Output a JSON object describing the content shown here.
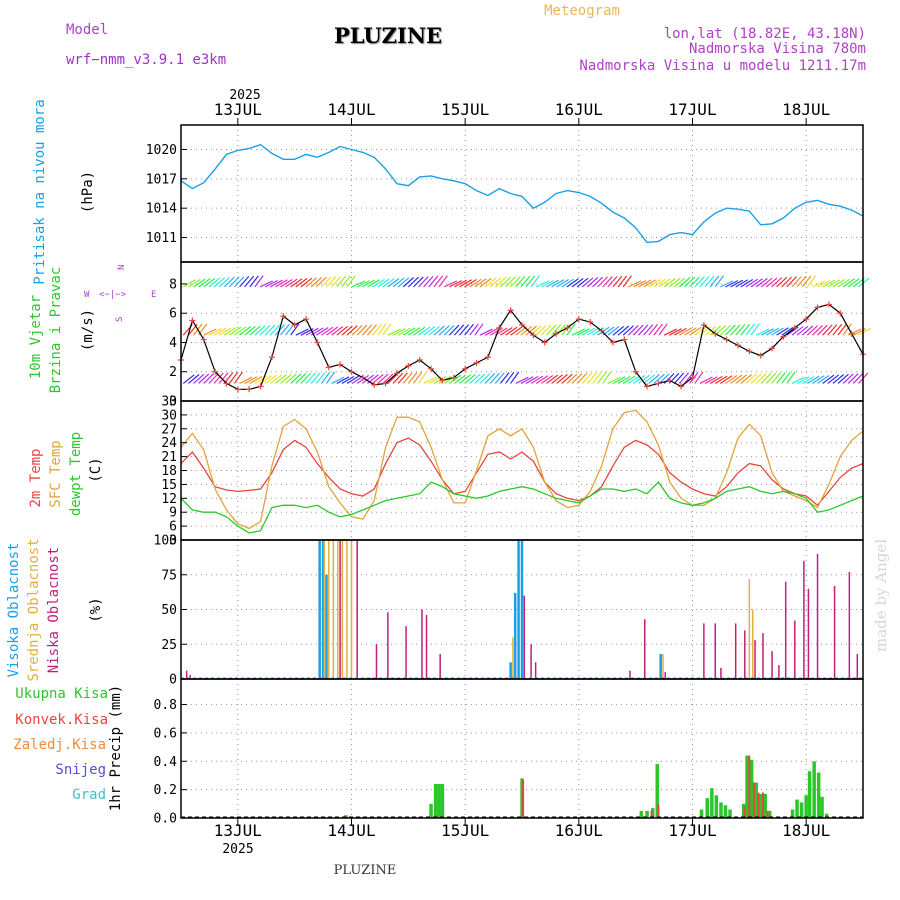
{
  "header": {
    "model_label": "Model",
    "model_name": "wrf−nmm_v3.9.1  e3km",
    "title": "PLUZINE",
    "meteogram": "Meteogram",
    "lonlat": "lon,lat (18.82E, 43.18N)",
    "altitude": "Nadmorska Visina 780m",
    "model_altitude": "Nadmorska Visina u modelu 1211.17m",
    "footer": "PLUZINE",
    "watermark": "made by Angel"
  },
  "colors": {
    "pressure": "#1aa0e6",
    "t2m": "#e8453c",
    "sfc": "#e0a43a",
    "dewpt": "#2ac82a",
    "wind_speed": "#000000",
    "high_cloud": "#1aa0e6",
    "mid_cloud": "#e0b040",
    "low_cloud": "#c0207a",
    "total_precip": "#2cc62c",
    "conv_precip": "#e8453c",
    "frozen_precip": "#f08a3c",
    "snow": "#5050d8",
    "hail": "#40c0c8"
  },
  "chart_data": [
    {
      "type": "line",
      "panel": "pressure",
      "ylabel": [
        "Pritisak na nivou mora",
        "(hPa)"
      ],
      "yticks": [
        1011,
        1014,
        1017,
        1020
      ],
      "ylim": [
        1008.5,
        1022.5
      ],
      "x_days": [
        12.5,
        12.6,
        12.7,
        12.8,
        12.9,
        13.0,
        13.1,
        13.2,
        13.3,
        13.4,
        13.5,
        13.6,
        13.7,
        13.8,
        13.9,
        14.0,
        14.1,
        14.2,
        14.3,
        14.4,
        14.5,
        14.6,
        14.7,
        14.8,
        14.9,
        15.0,
        15.1,
        15.2,
        15.3,
        15.4,
        15.5,
        15.6,
        15.7,
        15.8,
        15.9,
        16.0,
        16.1,
        16.2,
        16.3,
        16.4,
        16.5,
        16.6,
        16.7,
        16.8,
        16.9,
        17.0,
        17.1,
        17.2,
        17.3,
        17.4,
        17.5,
        17.6,
        17.7,
        17.8,
        17.9,
        18.0,
        18.1,
        18.2,
        18.3,
        18.4,
        18.5
      ],
      "values": [
        1016.8,
        1016.0,
        1016.6,
        1018.0,
        1019.5,
        1019.9,
        1020.1,
        1020.5,
        1019.6,
        1019.0,
        1019.0,
        1019.5,
        1019.2,
        1019.7,
        1020.3,
        1020.0,
        1019.7,
        1019.2,
        1018.0,
        1016.5,
        1016.3,
        1017.2,
        1017.3,
        1017.0,
        1016.8,
        1016.5,
        1015.8,
        1015.3,
        1016.0,
        1015.5,
        1015.2,
        1014.0,
        1014.6,
        1015.5,
        1015.8,
        1015.6,
        1015.2,
        1014.5,
        1013.6,
        1013.0,
        1012.0,
        1010.5,
        1010.6,
        1011.3,
        1011.5,
        1011.3,
        1012.6,
        1013.5,
        1014.0,
        1013.9,
        1013.7,
        1012.3,
        1012.4,
        1013.0,
        1014.0,
        1014.6,
        1014.8,
        1014.4,
        1014.2,
        1013.8,
        1013.2
      ]
    },
    {
      "type": "line",
      "panel": "wind",
      "ylabel": [
        "10m Vjetar",
        "Brzina i Pravac",
        "(m/s)"
      ],
      "yticks": [
        0,
        2,
        4,
        6,
        8
      ],
      "ylim": [
        0,
        9.5
      ],
      "compass": {
        "north": "N",
        "west": "W",
        "east": "E",
        "south": "S"
      },
      "barb_levels_m_s": [
        1.2,
        4.5,
        7.8
      ],
      "x_days": [
        12.5,
        12.6,
        12.7,
        12.8,
        12.9,
        13.0,
        13.1,
        13.2,
        13.3,
        13.4,
        13.5,
        13.6,
        13.7,
        13.8,
        13.9,
        14.0,
        14.1,
        14.2,
        14.3,
        14.4,
        14.5,
        14.6,
        14.7,
        14.8,
        14.9,
        15.0,
        15.1,
        15.2,
        15.3,
        15.4,
        15.5,
        15.6,
        15.7,
        15.8,
        15.9,
        16.0,
        16.1,
        16.2,
        16.3,
        16.4,
        16.5,
        16.6,
        16.7,
        16.8,
        16.9,
        17.0,
        17.1,
        17.2,
        17.3,
        17.4,
        17.5,
        17.6,
        17.7,
        17.8,
        17.9,
        18.0,
        18.1,
        18.2,
        18.3,
        18.4,
        18.5
      ],
      "values": [
        2.8,
        5.5,
        4.2,
        2.0,
        1.2,
        0.8,
        0.8,
        1.0,
        3.0,
        5.8,
        5.2,
        5.6,
        4.0,
        2.3,
        2.5,
        2.0,
        1.6,
        1.1,
        1.2,
        1.9,
        2.4,
        2.8,
        2.2,
        1.4,
        1.6,
        2.2,
        2.6,
        3.0,
        5.0,
        6.2,
        5.2,
        4.5,
        4.0,
        4.6,
        5.0,
        5.6,
        5.4,
        4.8,
        4.0,
        4.2,
        2.0,
        1.0,
        1.2,
        1.4,
        1.0,
        1.6,
        5.2,
        4.6,
        4.2,
        3.8,
        3.4,
        3.1,
        3.6,
        4.4,
        5.0,
        5.6,
        6.4,
        6.6,
        6.0,
        4.6,
        3.2
      ]
    },
    {
      "type": "line",
      "panel": "temperature",
      "ylabel": [
        "2m Temp",
        "SFC Temp",
        "dewpt Temp",
        "(C)"
      ],
      "yticks": [
        3,
        6,
        9,
        12,
        15,
        18,
        21,
        24,
        27,
        30,
        33
      ],
      "ylim": [
        3,
        33
      ],
      "x_days": [
        12.5,
        12.6,
        12.7,
        12.8,
        12.9,
        13.0,
        13.1,
        13.2,
        13.3,
        13.4,
        13.5,
        13.6,
        13.7,
        13.8,
        13.9,
        14.0,
        14.1,
        14.2,
        14.3,
        14.4,
        14.5,
        14.6,
        14.7,
        14.8,
        14.9,
        15.0,
        15.1,
        15.2,
        15.3,
        15.4,
        15.5,
        15.6,
        15.7,
        15.8,
        15.9,
        16.0,
        16.1,
        16.2,
        16.3,
        16.4,
        16.5,
        16.6,
        16.7,
        16.8,
        16.9,
        17.0,
        17.1,
        17.2,
        17.3,
        17.4,
        17.5,
        17.6,
        17.7,
        17.8,
        17.9,
        18.0,
        18.1,
        18.2,
        18.3,
        18.4,
        18.5
      ],
      "series": [
        {
          "name": "2m Temp",
          "values": [
            19.5,
            22.0,
            18.5,
            14.5,
            13.8,
            13.5,
            13.7,
            14.0,
            17.5,
            22.5,
            24.5,
            23.0,
            19.5,
            16.5,
            14.0,
            13.0,
            12.5,
            14.0,
            19.5,
            24.0,
            25.0,
            23.5,
            20.0,
            16.0,
            13.0,
            13.5,
            17.5,
            21.5,
            22.0,
            20.5,
            22.0,
            20.0,
            15.5,
            13.0,
            12.0,
            11.5,
            12.5,
            14.5,
            19.0,
            23.0,
            24.5,
            23.5,
            21.5,
            17.5,
            15.5,
            14.0,
            13.0,
            12.5,
            14.5,
            17.5,
            19.5,
            19.0,
            16.0,
            14.0,
            13.0,
            12.5,
            10.5,
            13.5,
            16.5,
            18.5,
            19.5
          ]
        },
        {
          "name": "SFC Temp",
          "values": [
            23.0,
            26.0,
            22.5,
            14.0,
            9.5,
            6.5,
            5.5,
            7.0,
            19.0,
            27.5,
            29.0,
            27.0,
            22.0,
            14.5,
            11.0,
            8.0,
            7.5,
            11.5,
            23.0,
            29.5,
            29.5,
            28.5,
            23.0,
            16.0,
            11.0,
            11.0,
            18.0,
            25.5,
            27.0,
            25.5,
            27.0,
            23.0,
            15.5,
            11.5,
            10.0,
            10.5,
            13.5,
            19.0,
            27.0,
            30.5,
            31.0,
            28.5,
            23.5,
            15.5,
            12.0,
            10.5,
            10.5,
            12.0,
            17.5,
            25.0,
            28.0,
            25.5,
            17.5,
            13.5,
            12.5,
            11.5,
            10.0,
            15.0,
            21.0,
            24.5,
            26.5
          ]
        },
        {
          "name": "dewpt Temp",
          "values": [
            12.0,
            9.5,
            9.0,
            9.0,
            8.0,
            6.0,
            4.5,
            5.0,
            10.0,
            10.5,
            10.5,
            10.0,
            10.5,
            9.0,
            8.0,
            8.5,
            9.5,
            10.5,
            11.5,
            12.0,
            12.5,
            13.0,
            15.5,
            14.5,
            13.0,
            12.5,
            12.0,
            12.5,
            13.5,
            14.0,
            14.5,
            14.0,
            13.0,
            12.0,
            11.5,
            11.0,
            12.5,
            14.0,
            14.0,
            13.5,
            14.0,
            13.0,
            15.5,
            12.0,
            11.0,
            10.5,
            11.0,
            12.0,
            13.5,
            14.0,
            14.5,
            13.5,
            13.0,
            13.5,
            13.0,
            12.0,
            9.0,
            9.5,
            10.5,
            11.5,
            12.5
          ]
        }
      ]
    },
    {
      "type": "bar",
      "panel": "cloud",
      "ylabel": [
        "Visoka Oblacnost",
        "Srednja Oblacnost",
        "Niska Oblacnost",
        "(%)"
      ],
      "yticks": [
        0,
        25,
        50,
        75,
        100
      ],
      "ylim": [
        0,
        100
      ],
      "series": [
        {
          "name": "Visoka Oblacnost",
          "points": [
            [
              13.72,
              100
            ],
            [
              13.75,
              100
            ],
            [
              13.78,
              75
            ],
            [
              15.4,
              12
            ],
            [
              15.44,
              62
            ],
            [
              15.47,
              100
            ],
            [
              15.5,
              100
            ],
            [
              16.72,
              18
            ]
          ]
        },
        {
          "name": "Srednja Oblacnost",
          "points": [
            [
              13.76,
              100
            ],
            [
              13.8,
              100
            ],
            [
              13.84,
              100
            ],
            [
              13.88,
              100
            ],
            [
              13.92,
              100
            ],
            [
              13.96,
              100
            ],
            [
              14.0,
              100
            ],
            [
              15.42,
              30
            ],
            [
              16.74,
              18
            ],
            [
              17.5,
              72
            ],
            [
              17.53,
              50
            ]
          ]
        },
        {
          "name": "Niska Oblacnost",
          "points": [
            [
              12.55,
              6
            ],
            [
              12.58,
              3
            ],
            [
              13.9,
              100
            ],
            [
              14.05,
              100
            ],
            [
              14.22,
              25
            ],
            [
              14.32,
              48
            ],
            [
              14.48,
              38
            ],
            [
              14.62,
              50
            ],
            [
              14.66,
              46
            ],
            [
              14.78,
              18
            ],
            [
              15.52,
              60
            ],
            [
              15.58,
              25
            ],
            [
              15.62,
              12
            ],
            [
              16.45,
              6
            ],
            [
              16.58,
              43
            ],
            [
              16.76,
              5
            ],
            [
              17.1,
              40
            ],
            [
              17.2,
              40
            ],
            [
              17.25,
              8
            ],
            [
              17.38,
              40
            ],
            [
              17.46,
              35
            ],
            [
              17.55,
              28
            ],
            [
              17.62,
              33
            ],
            [
              17.7,
              20
            ],
            [
              17.76,
              10
            ],
            [
              17.82,
              70
            ],
            [
              17.9,
              42
            ],
            [
              17.98,
              85
            ],
            [
              18.02,
              65
            ],
            [
              18.1,
              90
            ],
            [
              18.25,
              67
            ],
            [
              18.38,
              77
            ],
            [
              18.45,
              18
            ]
          ]
        }
      ]
    },
    {
      "type": "bar",
      "panel": "precip",
      "ylabel": [
        "Ukupna Kisa",
        "Konvek.Kisa",
        "Zaledj.Kisa",
        "Snijeg",
        "Grad",
        "1hr Precip (mm)"
      ],
      "yticks": [
        0.0,
        0.2,
        0.4,
        0.6,
        0.8
      ],
      "ylim": [
        0,
        0.98
      ],
      "series": [
        {
          "name": "Ukupna Kisa",
          "points": [
            [
              13.95,
              0.02
            ],
            [
              14.7,
              0.1
            ],
            [
              14.74,
              0.24
            ],
            [
              14.77,
              0.24
            ],
            [
              14.8,
              0.24
            ],
            [
              15.5,
              0.28
            ],
            [
              16.55,
              0.05
            ],
            [
              16.6,
              0.05
            ],
            [
              16.65,
              0.07
            ],
            [
              16.69,
              0.38
            ],
            [
              17.08,
              0.06
            ],
            [
              17.13,
              0.14
            ],
            [
              17.17,
              0.21
            ],
            [
              17.21,
              0.16
            ],
            [
              17.25,
              0.11
            ],
            [
              17.29,
              0.09
            ],
            [
              17.33,
              0.06
            ],
            [
              17.45,
              0.1
            ],
            [
              17.48,
              0.44
            ],
            [
              17.52,
              0.41
            ],
            [
              17.56,
              0.25
            ],
            [
              17.6,
              0.17
            ],
            [
              17.64,
              0.17
            ],
            [
              17.68,
              0.05
            ],
            [
              17.88,
              0.06
            ],
            [
              17.92,
              0.13
            ],
            [
              17.96,
              0.11
            ],
            [
              18.0,
              0.16
            ],
            [
              18.03,
              0.33
            ],
            [
              18.07,
              0.4
            ],
            [
              18.11,
              0.32
            ],
            [
              18.14,
              0.15
            ],
            [
              18.18,
              0.03
            ]
          ]
        },
        {
          "name": "Konvek.Kisa",
          "points": [
            [
              13.96,
              0.01
            ],
            [
              14.75,
              0.02
            ],
            [
              15.51,
              0.27
            ],
            [
              16.64,
              0.05
            ],
            [
              16.7,
              0.1
            ],
            [
              17.46,
              0.08
            ],
            [
              17.5,
              0.44
            ],
            [
              17.54,
              0.25
            ],
            [
              17.58,
              0.18
            ],
            [
              17.62,
              0.18
            ],
            [
              17.66,
              0.05
            ]
          ]
        }
      ]
    }
  ],
  "axis": {
    "year_top": "2025",
    "year_bottom": "2025",
    "days": [
      {
        "label": "13JUL",
        "day": 13
      },
      {
        "label": "14JUL",
        "day": 14
      },
      {
        "label": "15JUL",
        "day": 15
      },
      {
        "label": "16JUL",
        "day": 16
      },
      {
        "label": "17JUL",
        "day": 17
      },
      {
        "label": "18JUL",
        "day": 18
      }
    ]
  }
}
